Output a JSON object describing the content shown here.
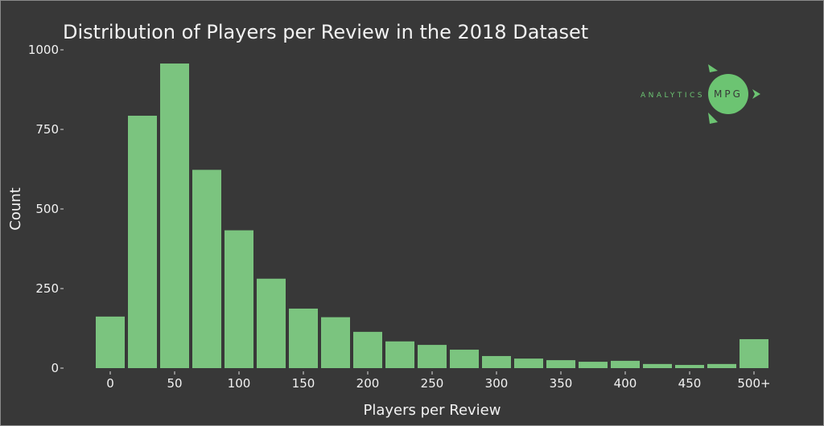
{
  "chart_data": {
    "type": "bar",
    "title": "Distribution of Players per Review in the 2018 Dataset",
    "xlabel": "Players per Review",
    "ylabel": "Count",
    "ylim": [
      0,
      1000
    ],
    "yticks": [
      "0",
      "250",
      "500",
      "750",
      "1000"
    ],
    "xtick_labels": [
      "0",
      "50",
      "100",
      "150",
      "200",
      "250",
      "300",
      "350",
      "400",
      "450",
      "500+"
    ],
    "categories": [
      "0",
      "25",
      "50",
      "75",
      "100",
      "125",
      "150",
      "175",
      "200",
      "225",
      "250",
      "275",
      "300",
      "325",
      "350",
      "375",
      "400",
      "425",
      "450",
      "475",
      "500+"
    ],
    "values": [
      162,
      793,
      957,
      623,
      433,
      281,
      187,
      160,
      114,
      84,
      73,
      58,
      38,
      30,
      25,
      20,
      23,
      13,
      10,
      13,
      91
    ],
    "grid": false,
    "bar_color": "#7bc47f",
    "background": "#383838"
  },
  "logo": {
    "left_text": "ANALYTICS",
    "circle_text": "MPG",
    "color": "#6cc472"
  }
}
